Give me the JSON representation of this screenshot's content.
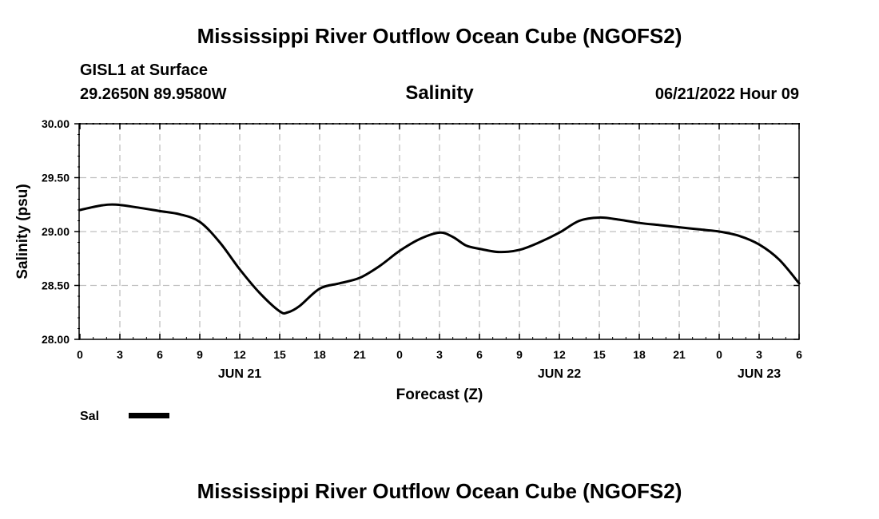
{
  "header": {
    "title": "Mississippi River Outflow Ocean Cube (NGOFS2)",
    "station": "GISL1 at Surface",
    "coordinates": "29.2650N  89.9580W",
    "timestamp": "06/21/2022 Hour 09"
  },
  "footer": {
    "title": "Mississippi River Outflow Ocean Cube (NGOFS2)"
  },
  "legend": {
    "label": "Sal",
    "color": "#000000"
  },
  "chart_data": {
    "type": "line",
    "title": "Salinity",
    "xlabel": "Forecast (Z)",
    "ylabel": "Salinity (psu)",
    "xlim": [
      0,
      54
    ],
    "ylim": [
      28.0,
      30.0
    ],
    "grid": true,
    "x_ticks": [
      0,
      3,
      6,
      9,
      12,
      15,
      18,
      21,
      24,
      27,
      30,
      33,
      36,
      39,
      42,
      45,
      48,
      51,
      54
    ],
    "x_tick_labels": [
      "0",
      "3",
      "6",
      "9",
      "12",
      "15",
      "18",
      "21",
      "0",
      "3",
      "6",
      "9",
      "12",
      "15",
      "18",
      "21",
      "0",
      "3",
      "6"
    ],
    "y_ticks": [
      28.0,
      28.5,
      29.0,
      29.5,
      30.0
    ],
    "y_tick_labels": [
      "28.00",
      "28.50",
      "29.00",
      "29.50",
      "30.00"
    ],
    "date_labels": [
      {
        "x": 12,
        "label": "JUN 21"
      },
      {
        "x": 36,
        "label": "JUN 22"
      },
      {
        "x": 51,
        "label": "JUN 23"
      }
    ],
    "series": [
      {
        "name": "Sal",
        "color": "#000000",
        "x": [
          0,
          1.5,
          2.7,
          4.5,
          6,
          7.5,
          9,
          10.5,
          12,
          13.5,
          15,
          15.6,
          16.5,
          18,
          19.5,
          21,
          22.5,
          24,
          25.5,
          27,
          28,
          29,
          30,
          31.5,
          33,
          34.5,
          36,
          37.5,
          39,
          40.5,
          42,
          43.5,
          45,
          46.5,
          48,
          49.5,
          51,
          52.5,
          54
        ],
        "values": [
          29.2,
          29.24,
          29.25,
          29.22,
          29.19,
          29.16,
          29.09,
          28.9,
          28.65,
          28.43,
          28.26,
          28.25,
          28.31,
          28.47,
          28.52,
          28.57,
          28.68,
          28.82,
          28.93,
          28.99,
          28.95,
          28.87,
          28.84,
          28.81,
          28.83,
          28.9,
          28.99,
          29.1,
          29.13,
          29.11,
          29.08,
          29.06,
          29.04,
          29.02,
          29.0,
          28.96,
          28.88,
          28.74,
          28.52
        ]
      }
    ]
  }
}
